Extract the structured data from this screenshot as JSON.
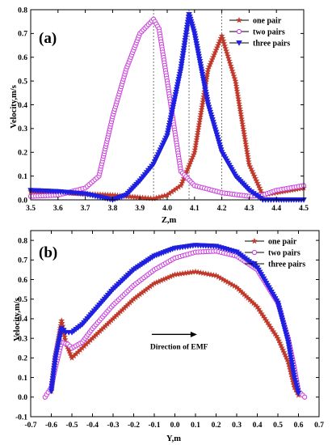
{
  "colors": {
    "one_pair": "#c0392b",
    "two_pairs": "#cc44dd",
    "three_pairs": "#1f1fe0",
    "line": "#000000"
  },
  "chart_data": [
    {
      "id": "a",
      "type": "line",
      "panel_label": "(a)",
      "xlabel": "Z,m",
      "ylabel": "Velocity,m/s",
      "xlim": [
        3.5,
        4.5
      ],
      "ylim": [
        0,
        0.8
      ],
      "xticks": [
        "3.5",
        "3.6",
        "3.7",
        "3.8",
        "3.9",
        "4.0",
        "4.1",
        "4.2",
        "4.3",
        "4.4",
        "4.5"
      ],
      "yticks": [
        "0.0",
        "0.1",
        "0.2",
        "0.3",
        "0.4",
        "0.5",
        "0.6",
        "0.7",
        "0.8"
      ],
      "legend_position": "top-right",
      "reference_lines_x": [
        3.95,
        4.08,
        4.2
      ],
      "series": [
        {
          "name": "one  pair",
          "marker": "star",
          "color_key": "one_pair",
          "x": [
            3.5,
            3.6,
            3.7,
            3.8,
            3.9,
            3.95,
            4.0,
            4.05,
            4.1,
            4.15,
            4.2,
            4.25,
            4.3,
            4.35,
            4.4,
            4.5
          ],
          "y": [
            0.035,
            0.03,
            0.025,
            0.02,
            0.01,
            0.005,
            0.02,
            0.06,
            0.2,
            0.55,
            0.69,
            0.5,
            0.15,
            0.02,
            0.03,
            0.05
          ]
        },
        {
          "name": "two pairs",
          "marker": "circle",
          "color_key": "two_pairs",
          "x": [
            3.5,
            3.6,
            3.7,
            3.75,
            3.8,
            3.85,
            3.9,
            3.95,
            3.97,
            4.0,
            4.05,
            4.1,
            4.2,
            4.3,
            4.35,
            4.4,
            4.5
          ],
          "y": [
            0.015,
            0.02,
            0.05,
            0.1,
            0.35,
            0.55,
            0.7,
            0.76,
            0.72,
            0.5,
            0.12,
            0.06,
            0.03,
            0.015,
            0.02,
            0.04,
            0.06
          ]
        },
        {
          "name": "three pairs",
          "marker": "triangle-down",
          "color_key": "three_pairs",
          "x": [
            3.5,
            3.6,
            3.7,
            3.8,
            3.85,
            3.9,
            3.95,
            4.0,
            4.05,
            4.08,
            4.1,
            4.15,
            4.2,
            4.25,
            4.3,
            4.35,
            4.4,
            4.5
          ],
          "y": [
            0.04,
            0.035,
            0.025,
            0.0,
            0.02,
            0.08,
            0.15,
            0.27,
            0.55,
            0.78,
            0.7,
            0.4,
            0.2,
            0.1,
            0.04,
            0.0,
            0.0,
            0.0
          ]
        }
      ]
    },
    {
      "id": "b",
      "type": "line",
      "panel_label": "(b)",
      "xlabel": "Y,m",
      "ylabel": "Velocity,m/s",
      "xlim": [
        -0.7,
        0.7
      ],
      "ylim": [
        -0.1,
        0.85
      ],
      "xticks": [
        "-0.7",
        "-0.6",
        "-0.5",
        "-0.4",
        "-0.3",
        "-0.2",
        "-0.1",
        "0.0",
        "0.1",
        "0.2",
        "0.3",
        "0.4",
        "0.5",
        "0.6",
        "0.7"
      ],
      "yticks": [
        "-0.1",
        "0.0",
        "0.1",
        "0.2",
        "0.3",
        "0.4",
        "0.5",
        "0.6",
        "0.7",
        "0.8"
      ],
      "legend_position": "top-right",
      "annotation": {
        "text": "Direction of EMF",
        "x": -0.12,
        "y": 0.32
      },
      "series": [
        {
          "name": "one  pair",
          "marker": "star",
          "color_key": "one_pair",
          "x": [
            -0.6,
            -0.58,
            -0.55,
            -0.53,
            -0.5,
            -0.45,
            -0.4,
            -0.3,
            -0.2,
            -0.1,
            0.0,
            0.1,
            0.2,
            0.3,
            0.4,
            0.5,
            0.55,
            0.58,
            0.6
          ],
          "y": [
            0.03,
            0.2,
            0.39,
            0.28,
            0.2,
            0.25,
            0.3,
            0.4,
            0.5,
            0.58,
            0.625,
            0.64,
            0.62,
            0.56,
            0.46,
            0.3,
            0.18,
            0.05,
            0.01
          ]
        },
        {
          "name": "two pairs",
          "marker": "circle",
          "color_key": "two_pairs",
          "x": [
            -0.63,
            -0.6,
            -0.58,
            -0.55,
            -0.52,
            -0.5,
            -0.45,
            -0.4,
            -0.3,
            -0.2,
            -0.1,
            0.0,
            0.1,
            0.2,
            0.3,
            0.4,
            0.5,
            0.55,
            0.58,
            0.6,
            0.63
          ],
          "y": [
            0.0,
            0.05,
            0.15,
            0.28,
            0.27,
            0.25,
            0.28,
            0.35,
            0.47,
            0.57,
            0.65,
            0.71,
            0.74,
            0.745,
            0.72,
            0.65,
            0.48,
            0.3,
            0.15,
            0.03,
            0.0
          ]
        },
        {
          "name": "three pairs",
          "marker": "triangle-down",
          "color_key": "three_pairs",
          "x": [
            -0.6,
            -0.58,
            -0.55,
            -0.53,
            -0.5,
            -0.45,
            -0.4,
            -0.3,
            -0.2,
            -0.1,
            0.0,
            0.1,
            0.2,
            0.3,
            0.4,
            0.5,
            0.55,
            0.58,
            0.6
          ],
          "y": [
            0.03,
            0.2,
            0.35,
            0.33,
            0.33,
            0.37,
            0.43,
            0.55,
            0.65,
            0.72,
            0.76,
            0.775,
            0.77,
            0.74,
            0.66,
            0.48,
            0.28,
            0.1,
            0.02
          ]
        }
      ]
    }
  ]
}
